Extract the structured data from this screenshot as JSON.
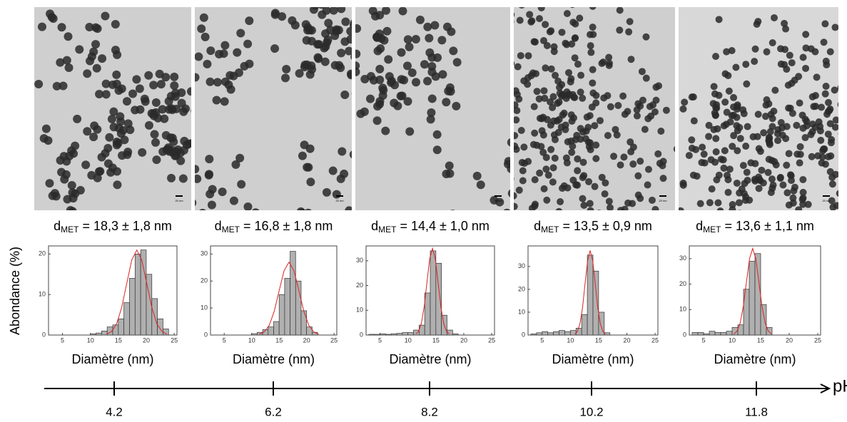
{
  "y_label": "Abondance (%)",
  "scale_bar": "20 nm",
  "ph_axis": {
    "label": "pH",
    "ticks": [
      4.2,
      6.2,
      8.2,
      10.2,
      11.8
    ]
  },
  "chart_data": [
    {
      "type": "histogram",
      "annotation": {
        "symbol": "d",
        "subscript": "MET",
        "text": "= 18,3 ± 1,8 nm"
      },
      "xlabel": "Diamètre (nm)",
      "bins": [
        10,
        11,
        12,
        13,
        14,
        15,
        16,
        17,
        18,
        19,
        20,
        21,
        22,
        23,
        24
      ],
      "values": [
        0.3,
        0.5,
        1,
        2,
        2.5,
        4,
        8,
        14,
        20,
        21,
        15,
        9,
        4,
        1.5
      ],
      "color": "#b0b0b0",
      "fit": {
        "color": "#e02020",
        "x": [
          12.9,
          13.8,
          14.7,
          15.6,
          16.5,
          17.4,
          18.3,
          19.2,
          20.1,
          21.0,
          21.9,
          22.8,
          23.7
        ],
        "values": [
          0.2,
          0.9,
          2.8,
          6.8,
          12.7,
          18.5,
          21,
          18.5,
          12.7,
          6.8,
          2.8,
          0.9,
          0.2
        ]
      },
      "xlim": [
        2.5,
        25.5
      ],
      "xticks": [
        5,
        10,
        15,
        20,
        25
      ],
      "ylim": [
        0,
        22
      ],
      "yticks": [
        0,
        10,
        20
      ]
    },
    {
      "type": "histogram",
      "annotation": {
        "symbol": "d",
        "subscript": "MET",
        "text": "= 16,8 ± 1,8 nm"
      },
      "xlabel": "Diamètre (nm)",
      "bins": [
        10,
        11,
        12,
        13,
        14,
        15,
        16,
        17,
        18,
        19,
        20,
        21,
        22
      ],
      "values": [
        0.5,
        1,
        2,
        3,
        5,
        15,
        21,
        31,
        20,
        9,
        3,
        1
      ],
      "color": "#b0b0b0",
      "fit": {
        "color": "#e02020",
        "x": [
          11.4,
          12.3,
          13.2,
          14.1,
          15.0,
          15.9,
          16.8,
          17.7,
          18.6,
          19.5,
          20.4,
          21.3,
          22.2
        ],
        "values": [
          0.3,
          1.2,
          3.6,
          8.8,
          16.4,
          23.8,
          27,
          23.8,
          16.4,
          8.8,
          3.6,
          1.2,
          0.3
        ]
      },
      "xlim": [
        2.5,
        25.5
      ],
      "xticks": [
        5,
        10,
        15,
        20,
        25
      ],
      "ylim": [
        0,
        33
      ],
      "yticks": [
        0,
        10,
        20,
        30
      ]
    },
    {
      "type": "histogram",
      "annotation": {
        "symbol": "d",
        "subscript": "MET",
        "text": "= 14,4 ± 1,0 nm"
      },
      "xlabel": "Diamètre (nm)",
      "bins": [
        3,
        4,
        5,
        6,
        7,
        8,
        9,
        10,
        11,
        12,
        13,
        14,
        15,
        16,
        17,
        18,
        19
      ],
      "values": [
        0.3,
        0.3,
        0.5,
        0.3,
        0.5,
        0.7,
        1,
        1,
        2,
        4,
        17,
        34,
        29,
        8,
        2,
        0.5
      ],
      "color": "#b0b0b0",
      "fit": {
        "color": "#e02020",
        "x": [
          11.4,
          11.9,
          12.4,
          12.9,
          13.4,
          13.9,
          14.4,
          14.9,
          15.4,
          15.9,
          16.4,
          16.9,
          17.4
        ],
        "values": [
          0.4,
          1.5,
          4.7,
          11.4,
          21.2,
          30.9,
          35,
          30.9,
          21.2,
          11.4,
          4.7,
          1.5,
          0.4
        ]
      },
      "xlim": [
        2.5,
        25.5
      ],
      "xticks": [
        5,
        10,
        15,
        20,
        25
      ],
      "ylim": [
        0,
        36
      ],
      "yticks": [
        0,
        10,
        20,
        30
      ]
    },
    {
      "type": "histogram",
      "annotation": {
        "symbol": "d",
        "subscript": "MET",
        "text": "= 13,5 ± 0,9 nm"
      },
      "xlabel": "Diamètre (nm)",
      "bins": [
        3,
        4,
        5,
        6,
        7,
        8,
        9,
        10,
        11,
        12,
        13,
        14,
        15,
        16,
        17
      ],
      "values": [
        0.5,
        1,
        1.5,
        1,
        1.5,
        2,
        1.5,
        2,
        3,
        9,
        35,
        28,
        10,
        1
      ],
      "color": "#b0b0b0",
      "fit": {
        "color": "#e02020",
        "x": [
          10.8,
          11.25,
          11.7,
          12.15,
          12.6,
          13.05,
          13.5,
          13.95,
          14.4,
          14.85,
          15.3,
          15.75,
          16.2
        ],
        "values": [
          0.4,
          1.6,
          5.0,
          12.0,
          22.5,
          32.6,
          37,
          32.6,
          22.5,
          12.0,
          5.0,
          1.6,
          0.4
        ]
      },
      "xlim": [
        2.5,
        25.5
      ],
      "xticks": [
        5,
        10,
        15,
        20,
        25
      ],
      "ylim": [
        0,
        39
      ],
      "yticks": [
        0,
        10,
        20,
        30
      ]
    },
    {
      "type": "histogram",
      "annotation": {
        "symbol": "d",
        "subscript": "MET",
        "text": "= 13,6 ± 1,1 nm"
      },
      "xlabel": "Diamètre (nm)",
      "bins": [
        3,
        4,
        5,
        6,
        7,
        8,
        9,
        10,
        11,
        12,
        13,
        14,
        15,
        16,
        17
      ],
      "values": [
        1,
        1,
        0.5,
        1.5,
        1,
        1,
        1.5,
        3,
        4,
        18,
        29,
        32,
        12,
        3
      ],
      "color": "#b0b0b0",
      "fit": {
        "color": "#e02020",
        "x": [
          10.3,
          10.85,
          11.4,
          11.95,
          12.5,
          13.05,
          13.6,
          14.15,
          14.7,
          15.25,
          15.8,
          16.35,
          16.9
        ],
        "values": [
          0.4,
          1.5,
          4.6,
          11.1,
          20.6,
          30,
          34,
          30,
          20.6,
          11.1,
          4.6,
          1.5,
          0.4
        ]
      },
      "xlim": [
        2.5,
        25.5
      ],
      "xticks": [
        5,
        10,
        15,
        20,
        25
      ],
      "ylim": [
        0,
        35
      ],
      "yticks": [
        0,
        10,
        20,
        30
      ]
    }
  ]
}
